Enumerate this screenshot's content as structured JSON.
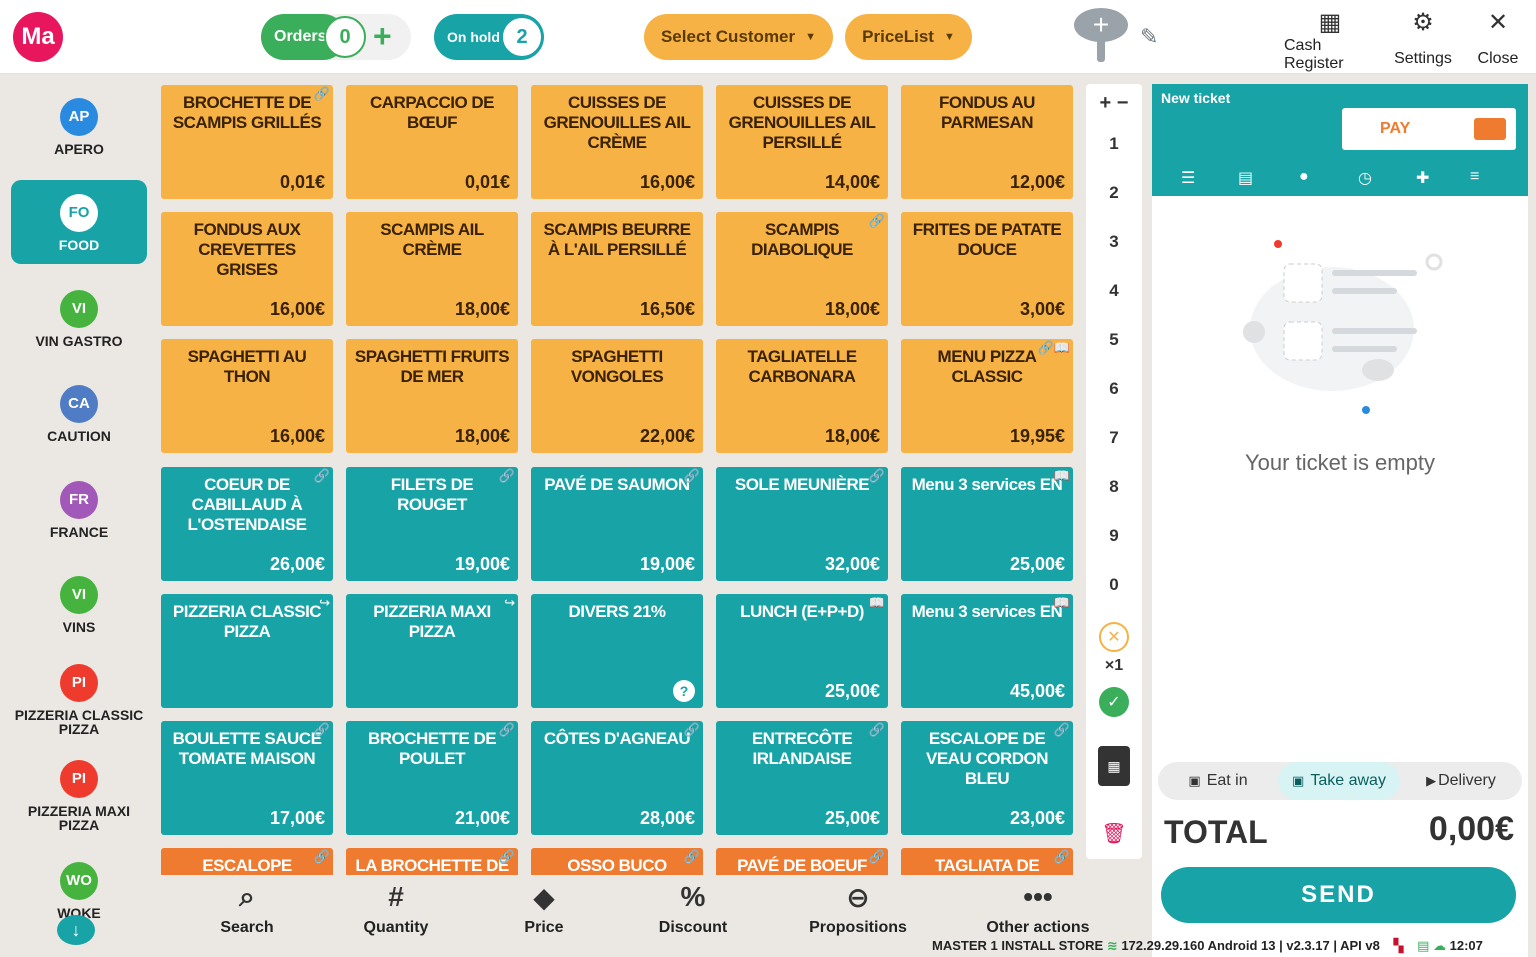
{
  "header": {
    "logo": "Ma",
    "orders_label": "Orders",
    "orders_count": "0",
    "onhold_label": "On hold",
    "onhold_count": "2",
    "select_customer": "Select Customer",
    "pricelist": "PriceList",
    "cash_register": "Cash Register",
    "settings": "Settings",
    "close": "Close"
  },
  "categories": [
    {
      "abbr": "AP",
      "label": "APERO",
      "color": "#2a8ae0"
    },
    {
      "abbr": "FO",
      "label": "FOOD",
      "color": "#ffffff"
    },
    {
      "abbr": "VI",
      "label": "VIN GASTRO",
      "color": "#46b33e"
    },
    {
      "abbr": "CA",
      "label": "CAUTION",
      "color": "#4f7cc4"
    },
    {
      "abbr": "FR",
      "label": "FRANCE",
      "color": "#a158b8"
    },
    {
      "abbr": "VI",
      "label": "VINS",
      "color": "#46b33e"
    },
    {
      "abbr": "PI",
      "label": "PIZZERIA CLASSIC PIZZA",
      "color": "#ef3b2d"
    },
    {
      "abbr": "PI",
      "label": "PIZZERIA MAXI PIZZA",
      "color": "#ef3b2d"
    },
    {
      "abbr": "WO",
      "label": "WOKE",
      "color": "#46b33e"
    }
  ],
  "products": [
    {
      "name": "BROCHETTE DE SCAMPIS GRILLÉS",
      "price": "0,01€",
      "color": "orange",
      "badge": "🔗"
    },
    {
      "name": "CARPACCIO DE BŒUF",
      "price": "0,01€",
      "color": "orange",
      "badge": ""
    },
    {
      "name": "CUISSES DE GRENOUILLES AIL CRÈME",
      "price": "16,00€",
      "color": "orange",
      "badge": ""
    },
    {
      "name": "CUISSES DE GRENOUILLES AIL PERSILLÉ",
      "price": "14,00€",
      "color": "orange",
      "badge": ""
    },
    {
      "name": "FONDUS AU PARMESAN",
      "price": "12,00€",
      "color": "orange",
      "badge": ""
    },
    {
      "name": "FONDUS AUX CREVETTES GRISES",
      "price": "16,00€",
      "color": "orange",
      "badge": ""
    },
    {
      "name": "SCAMPIS AIL CRÈME",
      "price": "18,00€",
      "color": "orange",
      "badge": ""
    },
    {
      "name": "SCAMPIS BEURRE À L'AIL PERSILLÉ",
      "price": "16,50€",
      "color": "orange",
      "badge": ""
    },
    {
      "name": "SCAMPIS DIABOLIQUE",
      "price": "18,00€",
      "color": "orange",
      "badge": "🔗"
    },
    {
      "name": "FRITES DE PATATE DOUCE",
      "price": "3,00€",
      "color": "orange",
      "badge": ""
    },
    {
      "name": "SPAGHETTI AU THON",
      "price": "16,00€",
      "color": "orange",
      "badge": ""
    },
    {
      "name": "SPAGHETTI FRUITS DE MER",
      "price": "18,00€",
      "color": "orange",
      "badge": ""
    },
    {
      "name": "SPAGHETTI VONGOLES",
      "price": "22,00€",
      "color": "orange",
      "badge": ""
    },
    {
      "name": "TAGLIATELLE CARBONARA",
      "price": "18,00€",
      "color": "orange",
      "badge": ""
    },
    {
      "name": "MENU PIZZA CLASSIC",
      "price": "19,95€",
      "color": "orange",
      "badge": "🔗📖"
    },
    {
      "name": "COEUR DE CABILLAUD À L'OSTENDAISE",
      "price": "26,00€",
      "color": "teal",
      "badge": "🔗"
    },
    {
      "name": "FILETS DE ROUGET",
      "price": "19,00€",
      "color": "teal",
      "badge": "🔗"
    },
    {
      "name": "PAVÉ DE SAUMON",
      "price": "19,00€",
      "color": "teal",
      "badge": "🔗"
    },
    {
      "name": "SOLE MEUNIÈRE",
      "price": "32,00€",
      "color": "teal",
      "badge": "🔗"
    },
    {
      "name": "Menu 3 services EN",
      "price": "25,00€",
      "color": "teal",
      "badge": "📖"
    },
    {
      "name": "PIZZERIA CLASSIC PIZZA",
      "price": "",
      "color": "teal",
      "badge": "↪"
    },
    {
      "name": "PIZZERIA MAXI PIZZA",
      "price": "",
      "color": "teal",
      "badge": "↪"
    },
    {
      "name": "DIVERS 21%",
      "price": "",
      "color": "teal",
      "badge": "",
      "question": "?"
    },
    {
      "name": "LUNCH (E+P+D)",
      "price": "25,00€",
      "color": "teal",
      "badge": "📖"
    },
    {
      "name": "Menu 3 services EN",
      "price": "45,00€",
      "color": "teal",
      "badge": "📖"
    },
    {
      "name": "BOULETTE SAUCE TOMATE MAISON",
      "price": "17,00€",
      "color": "teal",
      "badge": "🔗"
    },
    {
      "name": "BROCHETTE DE POULET",
      "price": "21,00€",
      "color": "teal",
      "badge": "🔗"
    },
    {
      "name": "CÔTES D'AGNEAU",
      "price": "28,00€",
      "color": "teal",
      "badge": "🔗"
    },
    {
      "name": "ENTRECÔTE IRLANDAISE",
      "price": "25,00€",
      "color": "teal",
      "badge": "🔗"
    },
    {
      "name": "ESCALOPE DE VEAU CORDON BLEU",
      "price": "23,00€",
      "color": "teal",
      "badge": "🔗"
    },
    {
      "name": "ESCALOPE",
      "price": "",
      "color": "red",
      "badge": "🔗"
    },
    {
      "name": "LA BROCHETTE DE",
      "price": "",
      "color": "red",
      "badge": "🔗"
    },
    {
      "name": "OSSO BUCO",
      "price": "",
      "color": "red",
      "badge": "🔗"
    },
    {
      "name": "PAVÉ DE BOEUF",
      "price": "",
      "color": "red",
      "badge": "🔗"
    },
    {
      "name": "TAGLIATA DE BOEUF",
      "price": "",
      "color": "red",
      "badge": "🔗"
    }
  ],
  "keypad": {
    "plusminus": "+ −",
    "keys": [
      "1",
      "2",
      "3",
      "4",
      "5",
      "6",
      "7",
      "8",
      "9",
      "0"
    ],
    "multiplier": "×1"
  },
  "ticket": {
    "title": "New ticket",
    "pay": "PAY",
    "empty": "Your ticket is empty",
    "eat_in": "Eat in",
    "take_away": "Take away",
    "delivery": "Delivery",
    "total_label": "TOTAL",
    "total_value": "0,00€",
    "send": "SEND"
  },
  "bottombar": {
    "search": "Search",
    "quantity": "Quantity",
    "price": "Price",
    "discount": "Discount",
    "propositions": "Propositions",
    "other_actions": "Other actions"
  },
  "status": {
    "store": "MASTER 1 INSTALL STORE",
    "ip": "172.29.29.160 Android 13 | v2.3.17 | API v8",
    "time": "12:07"
  }
}
